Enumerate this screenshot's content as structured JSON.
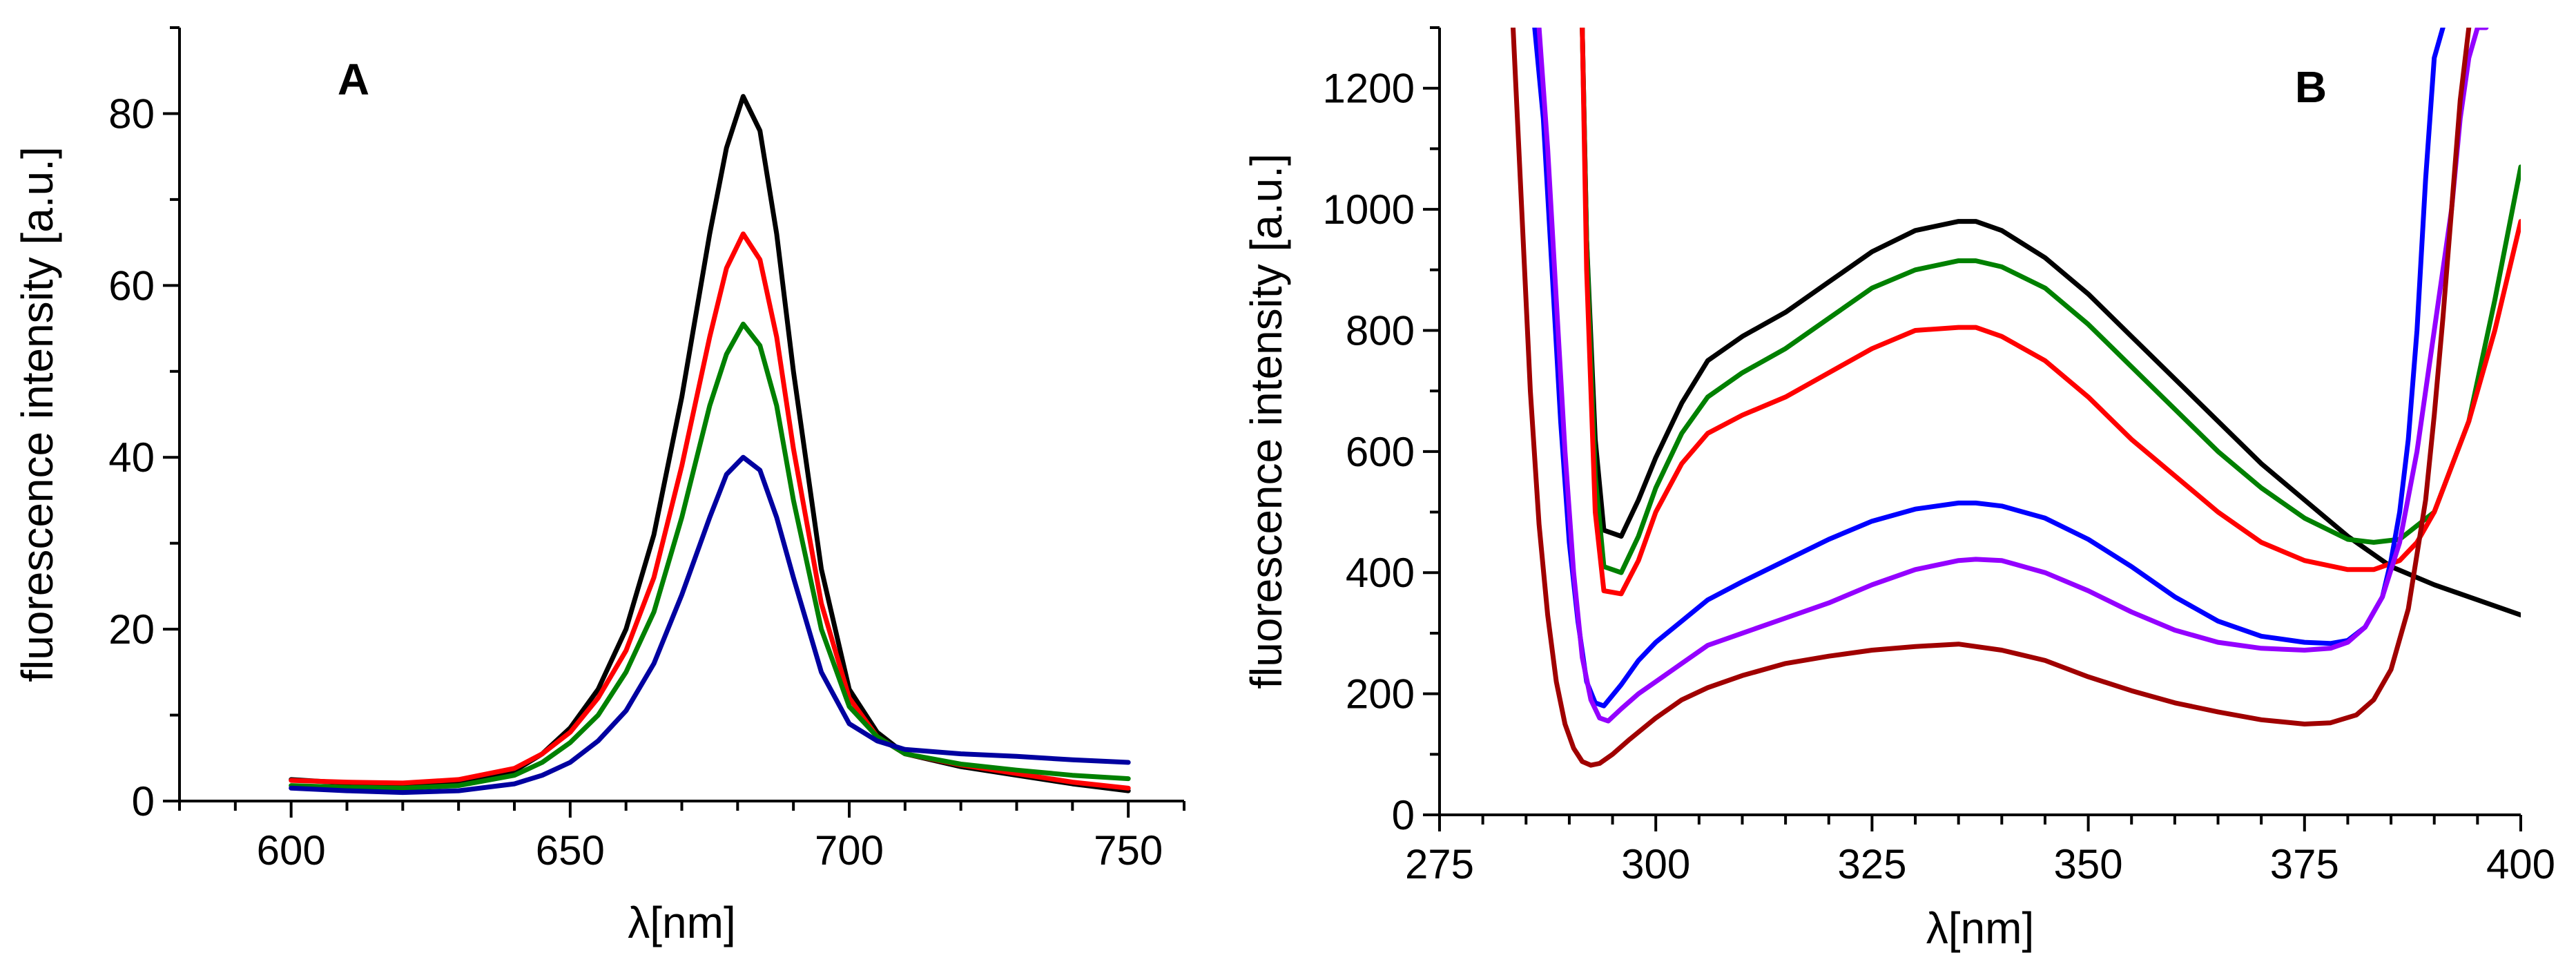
{
  "chart_data": [
    {
      "type": "line",
      "panel_label": "A",
      "xlabel": "λ[nm]",
      "ylabel": "fluorescence intensity [a.u.]",
      "xlim": [
        580,
        760
      ],
      "ylim": [
        0,
        90
      ],
      "xticks": [
        600,
        650,
        700,
        750
      ],
      "yticks": [
        0,
        20,
        40,
        60,
        80
      ],
      "xtick_labels": [
        "600",
        "650",
        "700",
        "750"
      ],
      "ytick_labels": [
        "0",
        "20",
        "40",
        "60",
        "80"
      ],
      "series": [
        {
          "name": "black",
          "color": "#000000",
          "x": [
            600,
            610,
            620,
            630,
            640,
            645,
            650,
            655,
            660,
            665,
            670,
            675,
            678,
            681,
            684,
            687,
            690,
            695,
            700,
            705,
            710,
            720,
            730,
            740,
            750
          ],
          "y": [
            2.5,
            2.1,
            2.0,
            2.3,
            3.5,
            5.5,
            8.5,
            13,
            20,
            31,
            47,
            66,
            76,
            82,
            78,
            66,
            50,
            27,
            13,
            8,
            5.5,
            4.0,
            3.0,
            2.0,
            1.2
          ]
        },
        {
          "name": "red",
          "color": "#ff0000",
          "x": [
            600,
            610,
            620,
            630,
            640,
            645,
            650,
            655,
            660,
            665,
            670,
            675,
            678,
            681,
            684,
            687,
            690,
            695,
            700,
            705,
            710,
            720,
            730,
            740,
            750
          ],
          "y": [
            2.4,
            2.2,
            2.1,
            2.5,
            3.8,
            5.5,
            8.0,
            12,
            17.5,
            26,
            39,
            54,
            62,
            66,
            63,
            54,
            41,
            23,
            12,
            7.5,
            5.5,
            4.2,
            3.2,
            2.2,
            1.5
          ]
        },
        {
          "name": "green",
          "color": "#008000",
          "x": [
            600,
            610,
            620,
            630,
            640,
            645,
            650,
            655,
            660,
            665,
            670,
            675,
            678,
            681,
            684,
            687,
            690,
            695,
            700,
            705,
            710,
            720,
            730,
            740,
            750
          ],
          "y": [
            1.8,
            1.6,
            1.5,
            1.8,
            3.0,
            4.5,
            6.8,
            10,
            15,
            22,
            33,
            46,
            52,
            55.5,
            53,
            46,
            35,
            20,
            11,
            7.5,
            5.5,
            4.3,
            3.6,
            3.0,
            2.6
          ]
        },
        {
          "name": "blue",
          "color": "#0000a0",
          "x": [
            600,
            610,
            620,
            630,
            640,
            645,
            650,
            655,
            660,
            665,
            670,
            675,
            678,
            681,
            684,
            687,
            690,
            695,
            700,
            705,
            710,
            720,
            730,
            740,
            750
          ],
          "y": [
            1.5,
            1.2,
            1.0,
            1.2,
            2.0,
            3.0,
            4.5,
            7,
            10.5,
            16,
            24,
            33,
            38,
            40,
            38.5,
            33,
            26,
            15,
            9,
            7,
            6,
            5.5,
            5.2,
            4.8,
            4.5
          ]
        }
      ]
    },
    {
      "type": "line",
      "panel_label": "B",
      "xlabel": "λ[nm]",
      "ylabel": "fluorescence intensity [a.u.]",
      "xlim": [
        275,
        400
      ],
      "ylim": [
        0,
        1300
      ],
      "xticks": [
        275,
        300,
        325,
        350,
        375,
        400
      ],
      "yticks": [
        0,
        200,
        400,
        600,
        800,
        1000,
        1200
      ],
      "xtick_labels": [
        "275",
        "300",
        "325",
        "350",
        "375",
        "400"
      ],
      "ytick_labels": [
        "0",
        "200",
        "400",
        "600",
        "800",
        "1000",
        "1200"
      ],
      "series": [
        {
          "name": "black",
          "color": "#000000",
          "x": [
            291.5,
            292,
            293,
            294,
            296,
            298,
            300,
            303,
            306,
            310,
            315,
            320,
            325,
            330,
            335,
            337,
            340,
            345,
            350,
            355,
            360,
            365,
            370,
            375,
            380,
            385,
            390,
            395,
            400
          ],
          "y": [
            1300,
            950,
            620,
            470,
            460,
            520,
            590,
            680,
            750,
            790,
            830,
            880,
            930,
            965,
            980,
            980,
            965,
            920,
            860,
            790,
            720,
            650,
            580,
            520,
            460,
            410,
            380,
            355,
            330
          ]
        },
        {
          "name": "green",
          "color": "#008000",
          "x": [
            291.5,
            292,
            293,
            294,
            296,
            298,
            300,
            303,
            306,
            310,
            315,
            320,
            325,
            330,
            335,
            337,
            340,
            345,
            350,
            355,
            360,
            365,
            370,
            375,
            380,
            383,
            386,
            390,
            394,
            397,
            400
          ],
          "y": [
            1300,
            950,
            560,
            410,
            400,
            460,
            540,
            630,
            690,
            730,
            770,
            820,
            870,
            900,
            915,
            915,
            905,
            870,
            810,
            740,
            670,
            600,
            540,
            490,
            455,
            450,
            455,
            500,
            650,
            850,
            1070
          ]
        },
        {
          "name": "red",
          "color": "#ff0000",
          "x": [
            291.5,
            292,
            293,
            294,
            296,
            298,
            300,
            303,
            306,
            310,
            315,
            320,
            325,
            330,
            335,
            337,
            340,
            345,
            350,
            355,
            360,
            365,
            370,
            375,
            380,
            383,
            386,
            388,
            390,
            394,
            397,
            400
          ],
          "y": [
            1300,
            900,
            500,
            370,
            365,
            420,
            500,
            580,
            630,
            660,
            690,
            730,
            770,
            800,
            805,
            805,
            790,
            750,
            690,
            620,
            560,
            500,
            450,
            420,
            405,
            405,
            420,
            450,
            500,
            650,
            800,
            980
          ]
        },
        {
          "name": "blue",
          "color": "#0000ff",
          "x": [
            286,
            287,
            288,
            289,
            290,
            291,
            292,
            293,
            294,
            296,
            298,
            300,
            303,
            306,
            310,
            315,
            320,
            325,
            330,
            335,
            337,
            340,
            345,
            350,
            355,
            360,
            365,
            370,
            375,
            378,
            380,
            382,
            384,
            385,
            386,
            387,
            388,
            389,
            390,
            391
          ],
          "y": [
            1300,
            1150,
            900,
            650,
            450,
            320,
            220,
            185,
            180,
            215,
            255,
            285,
            320,
            355,
            385,
            420,
            455,
            485,
            505,
            515,
            515,
            510,
            490,
            455,
            410,
            360,
            320,
            295,
            285,
            283,
            288,
            310,
            360,
            420,
            500,
            620,
            800,
            1050,
            1250,
            1300
          ]
        },
        {
          "name": "purple",
          "color": "#9400ff",
          "x": [
            286.5,
            287.5,
            288.5,
            289.5,
            290.5,
            291.5,
            292.5,
            293.5,
            294.5,
            296,
            298,
            300,
            303,
            306,
            310,
            315,
            320,
            325,
            330,
            335,
            337,
            340,
            345,
            350,
            355,
            360,
            365,
            370,
            375,
            378,
            380,
            382,
            384,
            386,
            388,
            390,
            392,
            393,
            394,
            395,
            396
          ],
          "y": [
            1300,
            1100,
            850,
            600,
            400,
            260,
            190,
            160,
            155,
            175,
            200,
            220,
            250,
            280,
            300,
            325,
            350,
            380,
            405,
            420,
            422,
            420,
            400,
            370,
            335,
            305,
            285,
            275,
            272,
            275,
            285,
            310,
            360,
            450,
            600,
            800,
            1000,
            1150,
            1250,
            1300,
            1300
          ]
        },
        {
          "name": "darkred",
          "color": "#a00000",
          "x": [
            283.5,
            284.5,
            285.5,
            286.5,
            287.5,
            288.5,
            289.5,
            290.5,
            291.5,
            292.5,
            293.5,
            295,
            297,
            300,
            303,
            306,
            310,
            315,
            320,
            325,
            330,
            335,
            340,
            345,
            350,
            355,
            360,
            365,
            370,
            375,
            378,
            381,
            383,
            385,
            387,
            389,
            390,
            391,
            392,
            393,
            394
          ],
          "y": [
            1300,
            1000,
            700,
            480,
            330,
            220,
            150,
            110,
            88,
            82,
            85,
            100,
            125,
            160,
            190,
            210,
            230,
            250,
            262,
            272,
            278,
            282,
            272,
            255,
            228,
            205,
            185,
            170,
            157,
            150,
            152,
            165,
            190,
            240,
            340,
            520,
            660,
            820,
            1000,
            1180,
            1300
          ]
        }
      ]
    }
  ]
}
